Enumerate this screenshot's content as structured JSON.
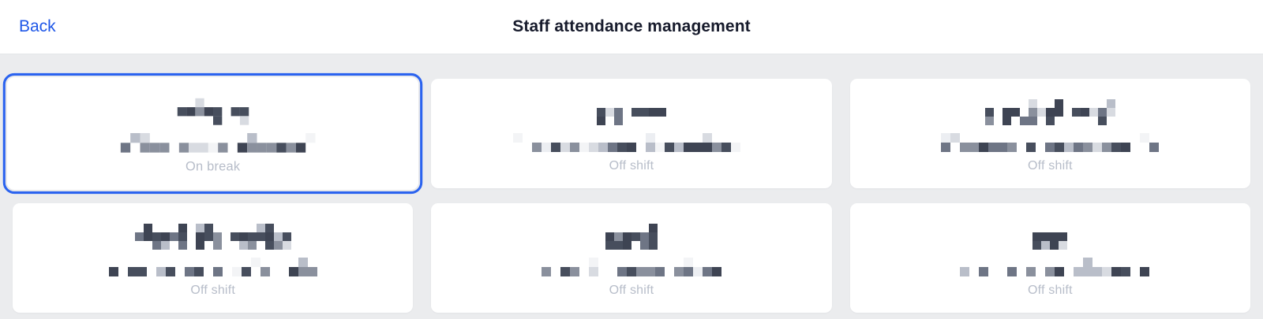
{
  "header": {
    "back_label": "Back",
    "title": "Staff attendance management"
  },
  "colors": {
    "accent": "#2b63ef",
    "back_link": "#1f57e8",
    "title_text": "#171b2c",
    "status_text": "#b7bdc9",
    "page_background": "#ebecee",
    "card_background": "#ffffff"
  },
  "cards": [
    {
      "status": "On break",
      "selected": true,
      "name_redaction": {
        "clusters": [
          5,
          2
        ],
        "rows": 3
      },
      "subtitle_redaction": {
        "cols": 21,
        "rows": 2
      },
      "seed": 7
    },
    {
      "status": "Off shift",
      "selected": false,
      "name_redaction": {
        "clusters": [
          3,
          4
        ],
        "rows": 3
      },
      "subtitle_redaction": {
        "cols": 27,
        "rows": 2
      },
      "seed": 13
    },
    {
      "status": "Off shift",
      "selected": false,
      "name_redaction": {
        "clusters": [
          9,
          5
        ],
        "rows": 3
      },
      "subtitle_redaction": {
        "cols": 23,
        "rows": 2
      },
      "seed": 21
    },
    {
      "status": "Off shift",
      "selected": false,
      "name_redaction": {
        "clusters": [
          6,
          3,
          7
        ],
        "rows": 3
      },
      "subtitle_redaction": {
        "cols": 22,
        "rows": 2
      },
      "seed": 5
    },
    {
      "status": "Off shift",
      "selected": false,
      "name_redaction": {
        "clusters": [
          6
        ],
        "rows": 3
      },
      "subtitle_redaction": {
        "cols": 19,
        "rows": 2
      },
      "seed": 17
    },
    {
      "status": "Off shift",
      "selected": false,
      "name_redaction": {
        "clusters": [
          4
        ],
        "rows": 3
      },
      "subtitle_redaction": {
        "cols": 21,
        "rows": 2
      },
      "seed": 29
    }
  ]
}
